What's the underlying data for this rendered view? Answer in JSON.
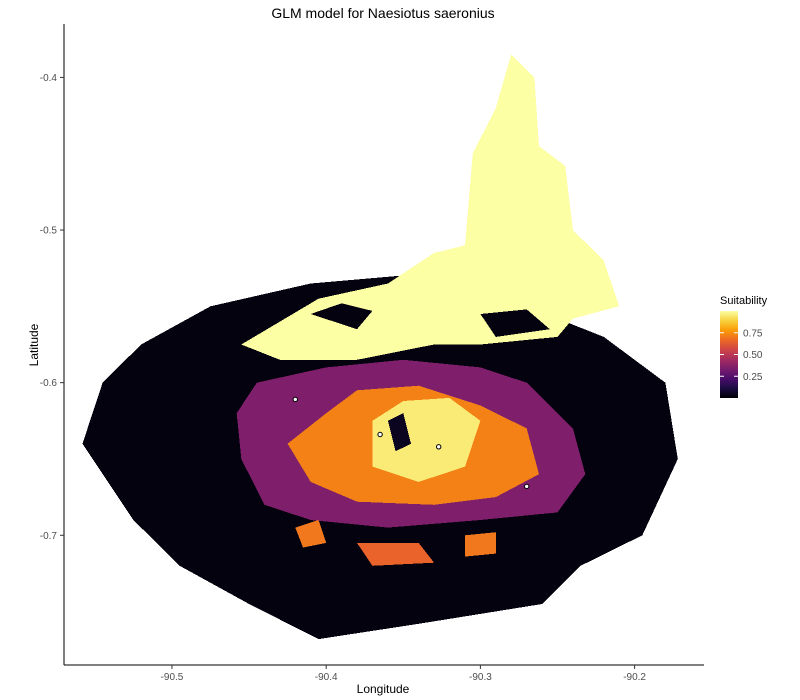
{
  "chart_data": {
    "type": "heatmap",
    "title": "GLM model for Naesiotus saeronius",
    "xlabel": "Longitude",
    "ylabel": "Latitude",
    "xlim": [
      -90.57,
      -90.155
    ],
    "ylim": [
      -0.785,
      -0.365
    ],
    "x_ticks": [
      -90.5,
      -90.4,
      -90.3,
      -90.2
    ],
    "y_ticks": [
      -0.4,
      -0.5,
      -0.6,
      -0.7
    ],
    "x_tick_labels": [
      "-90.5",
      "-90.4",
      "-90.3",
      "-90.2"
    ],
    "y_tick_labels": [
      "-0.4",
      "-0.5",
      "-0.6",
      "-0.7"
    ],
    "grid": false,
    "legend": {
      "title": "Suitability",
      "position": "right",
      "range": [
        0.0,
        1.0
      ],
      "ticks": [
        0.25,
        0.5,
        0.75
      ],
      "tick_labels": [
        "0.25",
        "0.50",
        "0.75"
      ],
      "colors": [
        "#000004",
        "#1b0c41",
        "#4a0c6b",
        "#781c6d",
        "#a52c60",
        "#cf4446",
        "#ed6925",
        "#fb9b06",
        "#f7d13d",
        "#fcffa4"
      ]
    },
    "occurrence_points": [
      {
        "x": -90.42,
        "y": -0.611
      },
      {
        "x": -90.365,
        "y": -0.634
      },
      {
        "x": -90.327,
        "y": -0.642
      },
      {
        "x": -90.27,
        "y": -0.668
      }
    ],
    "regions": [
      {
        "suitability": 0.02,
        "polygon": [
          [
            -90.475,
            -0.55
          ],
          [
            -90.41,
            -0.535
          ],
          [
            -90.33,
            -0.528
          ],
          [
            -90.27,
            -0.55
          ],
          [
            -90.22,
            -0.57
          ],
          [
            -90.18,
            -0.6
          ],
          [
            -90.172,
            -0.65
          ],
          [
            -90.195,
            -0.7
          ],
          [
            -90.235,
            -0.72
          ],
          [
            -90.26,
            -0.745
          ],
          [
            -90.34,
            -0.758
          ],
          [
            -90.405,
            -0.768
          ],
          [
            -90.45,
            -0.745
          ],
          [
            -90.495,
            -0.72
          ],
          [
            -90.525,
            -0.69
          ],
          [
            -90.558,
            -0.64
          ],
          [
            -90.545,
            -0.6
          ],
          [
            -90.52,
            -0.575
          ]
        ]
      },
      {
        "suitability": 1.0,
        "polygon": [
          [
            -90.455,
            -0.575
          ],
          [
            -90.405,
            -0.545
          ],
          [
            -90.36,
            -0.535
          ],
          [
            -90.33,
            -0.515
          ],
          [
            -90.31,
            -0.51
          ],
          [
            -90.305,
            -0.45
          ],
          [
            -90.29,
            -0.42
          ],
          [
            -90.28,
            -0.385
          ],
          [
            -90.265,
            -0.4
          ],
          [
            -90.262,
            -0.445
          ],
          [
            -90.245,
            -0.458
          ],
          [
            -90.24,
            -0.5
          ],
          [
            -90.22,
            -0.52
          ],
          [
            -90.21,
            -0.55
          ],
          [
            -90.24,
            -0.558
          ],
          [
            -90.25,
            -0.57
          ],
          [
            -90.3,
            -0.575
          ],
          [
            -90.33,
            -0.575
          ],
          [
            -90.38,
            -0.585
          ],
          [
            -90.43,
            -0.585
          ]
        ]
      },
      {
        "suitability": 0.02,
        "polygon": [
          [
            -90.41,
            -0.555
          ],
          [
            -90.39,
            -0.548
          ],
          [
            -90.37,
            -0.553
          ],
          [
            -90.38,
            -0.565
          ]
        ]
      },
      {
        "suitability": 0.02,
        "polygon": [
          [
            -90.3,
            -0.555
          ],
          [
            -90.27,
            -0.552
          ],
          [
            -90.255,
            -0.565
          ],
          [
            -90.29,
            -0.57
          ]
        ]
      },
      {
        "suitability": 0.35,
        "polygon": [
          [
            -90.445,
            -0.6
          ],
          [
            -90.4,
            -0.59
          ],
          [
            -90.35,
            -0.585
          ],
          [
            -90.3,
            -0.59
          ],
          [
            -90.27,
            -0.6
          ],
          [
            -90.24,
            -0.63
          ],
          [
            -90.232,
            -0.66
          ],
          [
            -90.25,
            -0.685
          ],
          [
            -90.3,
            -0.69
          ],
          [
            -90.36,
            -0.695
          ],
          [
            -90.41,
            -0.69
          ],
          [
            -90.44,
            -0.68
          ],
          [
            -90.455,
            -0.65
          ],
          [
            -90.458,
            -0.62
          ]
        ]
      },
      {
        "suitability": 0.72,
        "polygon": [
          [
            -90.4,
            -0.62
          ],
          [
            -90.38,
            -0.605
          ],
          [
            -90.34,
            -0.602
          ],
          [
            -90.3,
            -0.615
          ],
          [
            -90.27,
            -0.63
          ],
          [
            -90.262,
            -0.66
          ],
          [
            -90.29,
            -0.675
          ],
          [
            -90.33,
            -0.68
          ],
          [
            -90.38,
            -0.678
          ],
          [
            -90.41,
            -0.665
          ],
          [
            -90.425,
            -0.64
          ]
        ]
      },
      {
        "suitability": 0.95,
        "polygon": [
          [
            -90.37,
            -0.625
          ],
          [
            -90.35,
            -0.612
          ],
          [
            -90.32,
            -0.61
          ],
          [
            -90.3,
            -0.625
          ],
          [
            -90.31,
            -0.655
          ],
          [
            -90.34,
            -0.665
          ],
          [
            -90.37,
            -0.655
          ]
        ]
      },
      {
        "suitability": 0.05,
        "polygon": [
          [
            -90.36,
            -0.625
          ],
          [
            -90.35,
            -0.62
          ],
          [
            -90.345,
            -0.64
          ],
          [
            -90.355,
            -0.645
          ]
        ]
      },
      {
        "suitability": 0.65,
        "polygon": [
          [
            -90.38,
            -0.705
          ],
          [
            -90.34,
            -0.705
          ],
          [
            -90.33,
            -0.718
          ],
          [
            -90.37,
            -0.72
          ]
        ]
      },
      {
        "suitability": 0.7,
        "polygon": [
          [
            -90.42,
            -0.695
          ],
          [
            -90.405,
            -0.69
          ],
          [
            -90.4,
            -0.705
          ],
          [
            -90.415,
            -0.708
          ]
        ]
      },
      {
        "suitability": 0.7,
        "polygon": [
          [
            -90.31,
            -0.7
          ],
          [
            -90.29,
            -0.698
          ],
          [
            -90.29,
            -0.712
          ],
          [
            -90.31,
            -0.714
          ]
        ]
      }
    ]
  }
}
